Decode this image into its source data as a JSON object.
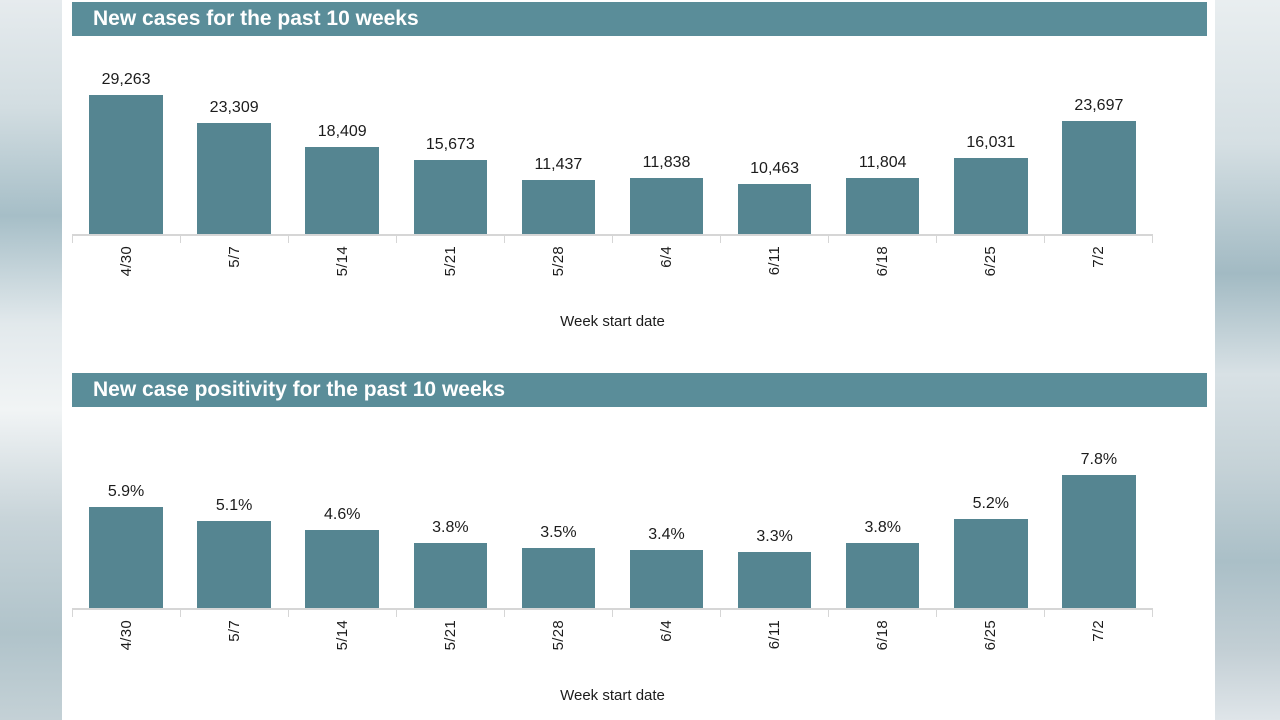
{
  "colors": {
    "bar": "#558591",
    "header_bg": "#5a8d99",
    "header_text": "#ffffff",
    "axis": "#d6d6d6",
    "text": "#1c1c1c"
  },
  "chart_data": [
    {
      "type": "bar",
      "title": "New cases for the past 10 weeks",
      "xlabel": "Week start date",
      "categories": [
        "4/30",
        "5/7",
        "5/14",
        "5/21",
        "5/28",
        "6/4",
        "6/11",
        "6/18",
        "6/25",
        "7/2"
      ],
      "values": [
        29263,
        23309,
        18409,
        15673,
        11437,
        11838,
        10463,
        11804,
        16031,
        23697
      ],
      "value_labels": [
        "29,263",
        "23,309",
        "18,409",
        "15,673",
        "11,437",
        "11,838",
        "10,463",
        "11,804",
        "16,031",
        "23,697"
      ],
      "ylim": [
        0,
        29263
      ],
      "grid": false,
      "legend": false,
      "tick_label_rotation": 90
    },
    {
      "type": "bar",
      "title": "New case positivity for the past 10 weeks",
      "xlabel": "Week start date",
      "categories": [
        "4/30",
        "5/7",
        "5/14",
        "5/21",
        "5/28",
        "6/4",
        "6/11",
        "6/18",
        "6/25",
        "7/2"
      ],
      "values": [
        5.9,
        5.1,
        4.6,
        3.8,
        3.5,
        3.4,
        3.3,
        3.8,
        5.2,
        7.8
      ],
      "value_labels": [
        "5.9%",
        "5.1%",
        "4.6%",
        "3.8%",
        "3.5%",
        "3.4%",
        "3.3%",
        "3.8%",
        "5.2%",
        "7.8%"
      ],
      "ylim": [
        0,
        7.8
      ],
      "grid": false,
      "legend": false,
      "tick_label_rotation": 90
    }
  ]
}
